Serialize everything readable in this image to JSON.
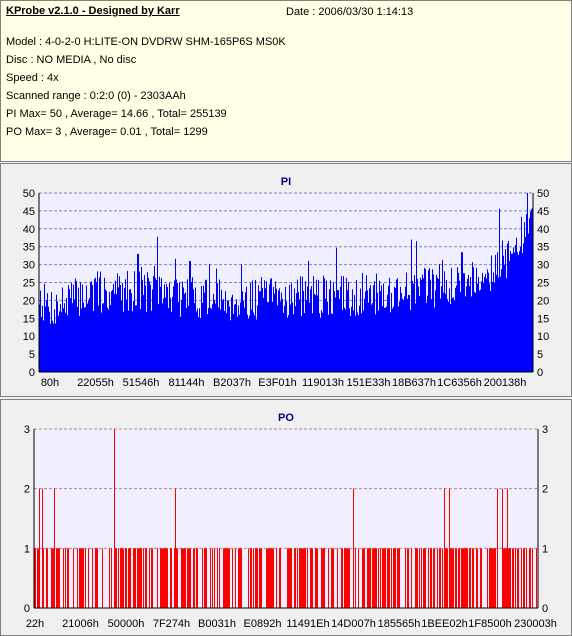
{
  "info": {
    "title": "KProbe v2.1.0 - Designed by Karr",
    "date": "Date : 2006/03/30 1:14:13",
    "model": "Model : 4-0-2-0 H:LITE-ON DVDRW SHM-165P6S MS0K",
    "disc": "Disc : NO MEDIA , No disc",
    "speed": "Speed : 4x",
    "range": "Scanned range : 0:2:0 (0) - 2303AAh",
    "pi": "PI Max= 50 , Average= 14.66 , Total= 255139",
    "po": "PO Max= 3 , Average= 0.01 , Total= 1299"
  },
  "colors": {
    "pi_fill": "#0000ff",
    "po_fill": "#ff0000",
    "plot_bg": "#efefff",
    "grid_pi": "#8080c0",
    "grid_po": "#c08080",
    "info_bg": "#ffffe6",
    "title_color": "#000080"
  },
  "chart_data": [
    {
      "type": "bar",
      "title": "PI",
      "ylim": [
        0,
        50
      ],
      "yticks": [
        0,
        5,
        10,
        15,
        20,
        25,
        30,
        35,
        40,
        45,
        50
      ],
      "right_axis": true,
      "grid": true,
      "xtick_labels": [
        "80h",
        "22055h",
        "51546h",
        "81144h",
        "B2037h",
        "E3F01h",
        "119013h",
        "151E33h",
        "18B637h",
        "1C6356h",
        "200138h"
      ],
      "profile_x_fraction": [
        0,
        0.01,
        0.03,
        0.06,
        0.1,
        0.2,
        0.3,
        0.4,
        0.5,
        0.6,
        0.7,
        0.75,
        0.8,
        0.85,
        0.9,
        0.93,
        0.96,
        0.98,
        1.0
      ],
      "profile_values": [
        22,
        19,
        18,
        20,
        22,
        23,
        21,
        20,
        21,
        21,
        22,
        23,
        24,
        25,
        27,
        30,
        33,
        38,
        42
      ],
      "spikes": [
        {
          "x_fraction": 0.2,
          "value": 33
        },
        {
          "x_fraction": 0.305,
          "value": 31
        },
        {
          "x_fraction": 0.41,
          "value": 30
        },
        {
          "x_fraction": 0.755,
          "value": 37
        },
        {
          "x_fraction": 0.99,
          "value": 50
        }
      ]
    },
    {
      "type": "bar",
      "title": "PO",
      "ylim": [
        0,
        3
      ],
      "yticks": [
        0,
        1,
        2,
        3
      ],
      "right_axis": true,
      "grid": true,
      "xtick_labels": [
        "22h",
        "21006h",
        "50000h",
        "7F274h",
        "B0031h",
        "E0892h",
        "11491Eh",
        "14D007h",
        "185565h",
        "1BEE02h",
        "1F8500h",
        "230003h"
      ],
      "value_2_x_fraction": [
        0.01,
        0.015,
        0.04,
        0.28,
        0.635,
        0.815,
        0.825,
        0.92,
        0.93,
        0.94
      ],
      "value_3_x_fraction": [
        0.16
      ],
      "value_1_density": 0.55
    }
  ]
}
